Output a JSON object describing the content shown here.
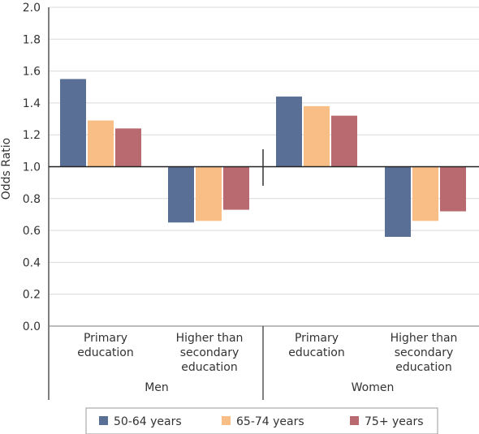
{
  "chart_data": {
    "type": "bar",
    "ylabel": "Odds Ratio",
    "ylim": [
      0,
      2.0
    ],
    "yticks": [
      "0.0",
      "0.2",
      "0.4",
      "0.6",
      "0.8",
      "1.0",
      "1.2",
      "1.4",
      "1.6",
      "1.8",
      "2.0"
    ],
    "baseline": 1.0,
    "grid": true,
    "legend_position": "bottom",
    "groups": [
      {
        "label": "Men",
        "categories": [
          "Primary education",
          "Higher than secondary education"
        ]
      },
      {
        "label": "Women",
        "categories": [
          "Primary education",
          "Higher than secondary education"
        ]
      }
    ],
    "category_label_lines": [
      [
        "Primary",
        "education"
      ],
      [
        "Higher than",
        "secondary",
        "education"
      ],
      [
        "Primary",
        "education"
      ],
      [
        "Higher than",
        "secondary",
        "education"
      ]
    ],
    "series": [
      {
        "name": "50-64 years",
        "color": "#5a6f96",
        "values": [
          1.55,
          0.65,
          1.44,
          0.56
        ]
      },
      {
        "name": "65-74 years",
        "color": "#f9be86",
        "values": [
          1.29,
          0.66,
          1.38,
          0.66
        ]
      },
      {
        "name": "75+ years",
        "color": "#b86a70",
        "values": [
          1.24,
          0.73,
          1.32,
          0.72
        ]
      }
    ]
  }
}
